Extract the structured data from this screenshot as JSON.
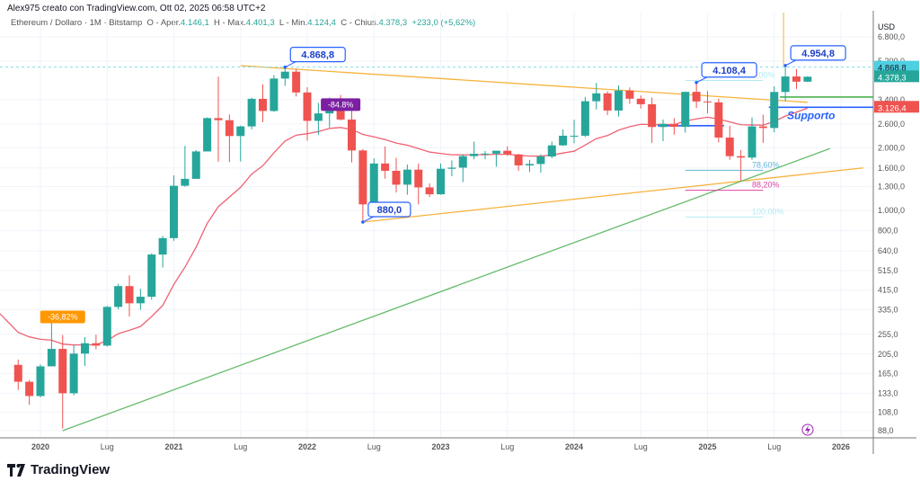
{
  "header": {
    "caption": "Alex975 creato con TradingView.com, Ott 02, 2025 06:58 UTC+2"
  },
  "legend": {
    "symbol": "Ethereum / Dollaro · 1M · Bitstamp",
    "open_label": "O - Aper.",
    "open": "4.146,1",
    "high_label": "H - Max.",
    "high": "4.401,3",
    "low_label": "L - Min.",
    "low": "4.124,4",
    "close_label": "C - Chius.",
    "close": "4.378,3",
    "change": "+233,0 (+5,62%)"
  },
  "footer": {
    "brand": "TradingView"
  },
  "colors": {
    "up": "#26a69a",
    "down": "#ef5350",
    "ma": "#f06274",
    "trend_orange": "#f7b23b",
    "trend_green": "#66bb6a",
    "callout": "#2962ff",
    "support": "#2962ff"
  },
  "chart_data": {
    "type": "candlestick",
    "scale": "log",
    "currency_label": "USD",
    "ylim": [
      80,
      7800
    ],
    "y_ticks": [
      "6.800,0",
      "5.200,0",
      "3.400,0",
      "2.600,0",
      "2.000,0",
      "1.600,0",
      "1.300,0",
      "1.000,0",
      "800,0",
      "640,0",
      "515,0",
      "415,0",
      "335,0",
      "255,0",
      "205,0",
      "165,0",
      "133,0",
      "108,0",
      "88,0"
    ],
    "y_tick_values": [
      6800,
      5200,
      3400,
      2600,
      2000,
      1600,
      1300,
      1000,
      800,
      640,
      515,
      415,
      335,
      255,
      205,
      165,
      133,
      108,
      88
    ],
    "x_ticks": [
      {
        "label": "2020",
        "date": "2020-01"
      },
      {
        "label": "Lug",
        "date": "2020-07"
      },
      {
        "label": "2021",
        "date": "2021-01"
      },
      {
        "label": "Lug",
        "date": "2021-07"
      },
      {
        "label": "2022",
        "date": "2022-01"
      },
      {
        "label": "Lug",
        "date": "2022-07"
      },
      {
        "label": "2023",
        "date": "2023-01"
      },
      {
        "label": "Lug",
        "date": "2023-07"
      },
      {
        "label": "2024",
        "date": "2024-01"
      },
      {
        "label": "Lug",
        "date": "2024-07"
      },
      {
        "label": "2025",
        "date": "2025-01"
      },
      {
        "label": "Lug",
        "date": "2025-07"
      },
      {
        "label": "2026",
        "date": "2026-01"
      }
    ],
    "grid": true,
    "candles": [
      [
        "2019-11",
        182,
        193,
        138,
        151
      ],
      [
        "2019-12",
        151,
        154,
        117,
        129
      ],
      [
        "2020-01",
        129,
        183,
        127,
        179
      ],
      [
        "2020-02",
        179,
        288,
        180,
        217
      ],
      [
        "2020-03",
        217,
        253,
        90,
        133
      ],
      [
        "2020-04",
        133,
        227,
        130,
        206
      ],
      [
        "2020-05",
        206,
        247,
        180,
        231
      ],
      [
        "2020-06",
        231,
        254,
        216,
        225
      ],
      [
        "2020-07",
        225,
        349,
        223,
        345
      ],
      [
        "2020-08",
        345,
        445,
        336,
        434
      ],
      [
        "2020-09",
        434,
        489,
        310,
        359
      ],
      [
        "2020-10",
        359,
        421,
        334,
        386
      ],
      [
        "2020-11",
        386,
        623,
        374,
        615
      ],
      [
        "2020-12",
        615,
        755,
        533,
        737
      ],
      [
        "2021-01",
        737,
        1475,
        715,
        1314
      ],
      [
        "2021-02",
        1314,
        2041,
        1300,
        1418
      ],
      [
        "2021-03",
        1418,
        1948,
        1435,
        1919
      ],
      [
        "2021-04",
        1919,
        2795,
        1935,
        2773
      ],
      [
        "2021-05",
        2773,
        4380,
        1716,
        2710
      ],
      [
        "2021-06",
        2710,
        2890,
        1705,
        2275
      ],
      [
        "2021-07",
        2275,
        2550,
        1718,
        2530
      ],
      [
        "2021-08",
        2530,
        3470,
        2450,
        3430
      ],
      [
        "2021-09",
        3430,
        4030,
        2650,
        3000
      ],
      [
        "2021-10",
        3000,
        4460,
        2970,
        4290
      ],
      [
        "2021-11",
        4290,
        4868,
        3960,
        4630
      ],
      [
        "2021-12",
        4630,
        4780,
        3520,
        3680
      ],
      [
        "2022-01",
        3680,
        3900,
        2160,
        2690
      ],
      [
        "2022-02",
        2690,
        3280,
        2300,
        2920
      ],
      [
        "2022-03",
        2920,
        3480,
        2500,
        3280
      ],
      [
        "2022-04",
        3280,
        3580,
        2700,
        2730
      ],
      [
        "2022-05",
        2730,
        3000,
        1700,
        1940
      ],
      [
        "2022-06",
        1940,
        1970,
        880,
        1070
      ],
      [
        "2022-07",
        1070,
        1780,
        1000,
        1680
      ],
      [
        "2022-08",
        1680,
        2030,
        1420,
        1550
      ],
      [
        "2022-09",
        1550,
        1790,
        1220,
        1330
      ],
      [
        "2022-10",
        1330,
        1660,
        1190,
        1570
      ],
      [
        "2022-11",
        1570,
        1680,
        1070,
        1290
      ],
      [
        "2022-12",
        1290,
        1350,
        1160,
        1196
      ],
      [
        "2023-01",
        1196,
        1680,
        1190,
        1585
      ],
      [
        "2023-02",
        1585,
        1740,
        1460,
        1605
      ],
      [
        "2023-03",
        1605,
        1860,
        1370,
        1822
      ],
      [
        "2023-04",
        1822,
        2140,
        1760,
        1870
      ],
      [
        "2023-05",
        1870,
        1930,
        1760,
        1874
      ],
      [
        "2023-06",
        1874,
        1930,
        1620,
        1934
      ],
      [
        "2023-07",
        1934,
        2030,
        1830,
        1857
      ],
      [
        "2023-08",
        1857,
        1870,
        1550,
        1645
      ],
      [
        "2023-09",
        1645,
        1750,
        1530,
        1671
      ],
      [
        "2023-10",
        1671,
        1860,
        1520,
        1815
      ],
      [
        "2023-11",
        1815,
        2140,
        1780,
        2052
      ],
      [
        "2023-12",
        2052,
        2450,
        2040,
        2283
      ],
      [
        "2024-01",
        2283,
        2720,
        2100,
        2283
      ],
      [
        "2024-02",
        2283,
        3500,
        2250,
        3340
      ],
      [
        "2024-03",
        3340,
        4090,
        3050,
        3645
      ],
      [
        "2024-04",
        3645,
        3730,
        2870,
        3015
      ],
      [
        "2024-05",
        3015,
        3980,
        2820,
        3760
      ],
      [
        "2024-06",
        3760,
        3890,
        3240,
        3435
      ],
      [
        "2024-07",
        3435,
        3560,
        3080,
        3232
      ],
      [
        "2024-08",
        3232,
        3480,
        2110,
        2513
      ],
      [
        "2024-09",
        2513,
        2730,
        2150,
        2602
      ],
      [
        "2024-10",
        2602,
        2770,
        2310,
        2518
      ],
      [
        "2024-11",
        2518,
        3680,
        2360,
        3705
      ],
      [
        "2024-12",
        3705,
        4108,
        3100,
        3332
      ],
      [
        "2025-01",
        3332,
        3740,
        2920,
        3300
      ],
      [
        "2025-02",
        3300,
        3440,
        2120,
        2237
      ],
      [
        "2025-03",
        2237,
        2550,
        1750,
        1822
      ],
      [
        "2025-04",
        1822,
        1950,
        1385,
        1794
      ],
      [
        "2025-05",
        1794,
        2790,
        1750,
        2530
      ],
      [
        "2025-06",
        2530,
        2880,
        2110,
        2486
      ],
      [
        "2025-07",
        2486,
        3940,
        2370,
        3700
      ],
      [
        "2025-08",
        3700,
        4955,
        3350,
        4390
      ],
      [
        "2025-09",
        4390,
        4770,
        3830,
        4146
      ],
      [
        "2025-10",
        4146,
        4401,
        4124,
        4378
      ]
    ],
    "trendlines": [
      {
        "color": "orange",
        "from": [
          "2021-07",
          4950
        ],
        "to": [
          "2025-10",
          3300
        ]
      },
      {
        "color": "orange",
        "from": [
          "2022-06",
          880
        ],
        "to": [
          "2026-03",
          1600
        ]
      },
      {
        "color": "green",
        "from": [
          "2020-03",
          88
        ],
        "to": [
          "2025-12",
          1980
        ]
      }
    ],
    "horizontal_lines": [
      {
        "price": 4868.8,
        "style": "dashed",
        "color": "#80deea"
      },
      {
        "price": 3126.4,
        "from": "2025-07",
        "color": "#2962ff"
      },
      {
        "price": 3500,
        "from": "2025-08",
        "color": "#4caf50"
      },
      {
        "price": 2550,
        "from": "2024-09",
        "to": "2025-02",
        "color": "#2962ff"
      }
    ],
    "callouts": [
      {
        "text": "4.868,8",
        "date": "2021-11",
        "price": 4868
      },
      {
        "text": "880,0",
        "date": "2022-06",
        "price": 880
      },
      {
        "text": "4.108,4",
        "date": "2024-12",
        "price": 4108
      },
      {
        "text": "4.954,8",
        "date": "2025-08",
        "price": 4955
      }
    ],
    "badges": [
      {
        "text": "-36,82%",
        "date": "2020-03",
        "price": 288,
        "color": "#ff9800"
      },
      {
        "text": "-84.8%",
        "date": "2022-04",
        "price": 3000,
        "color": "#7b1fa2"
      }
    ],
    "fib_levels": [
      {
        "text": "0,00%",
        "price": 4200,
        "color": "#b2ebf2"
      },
      {
        "text": "78,60%",
        "price": 1560,
        "color": "#5fb4d9"
      },
      {
        "text": "88,20%",
        "price": 1250,
        "color": "#e040a0"
      },
      {
        "text": "100,00%",
        "price": 930,
        "color": "#b2ebf2"
      }
    ],
    "support_label": "Supporto",
    "price_tags": [
      {
        "text": "4.868,8",
        "price": 4868.8,
        "color": "#4dd0e1",
        "fg": "#131722"
      },
      {
        "text": "4.378,3",
        "price": 4378.3,
        "color": "#26a69a",
        "fg": "#ffffff"
      },
      {
        "text": "3.126,4",
        "price": 3126.4,
        "color": "#ef5350",
        "fg": "#ffffff"
      }
    ],
    "moving_average_length": 20
  }
}
